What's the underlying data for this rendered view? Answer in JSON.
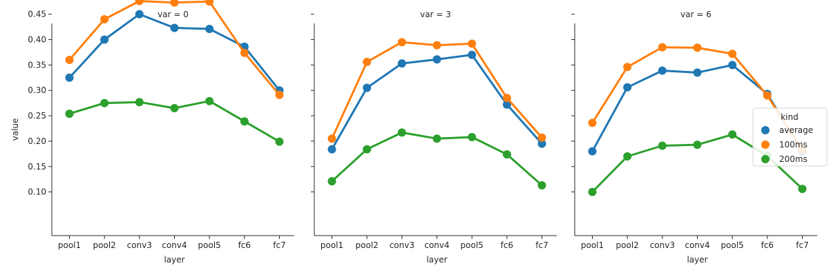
{
  "chart_data": {
    "type": "line",
    "facet_variable": "var",
    "legend": {
      "title": "kind",
      "placement": "right",
      "entries": [
        "average",
        "100ms",
        "200ms"
      ]
    },
    "colors": {
      "average": "#1f77b4",
      "100ms": "#ff7f0e",
      "200ms": "#2ca02c"
    },
    "categories": [
      "pool1",
      "pool2",
      "conv3",
      "conv4",
      "pool5",
      "fc6",
      "fc7"
    ],
    "xlabel": "layer",
    "ylabel": "value",
    "ylim": [
      0.075,
      0.5
    ],
    "yticks": [
      "0.10",
      "0.15",
      "0.20",
      "0.25",
      "0.30",
      "0.35",
      "0.40",
      "0.45"
    ],
    "grid": false,
    "panels": [
      {
        "title": "var = 0",
        "series": [
          {
            "name": "average",
            "values": [
              0.325,
              0.4,
              0.45,
              0.423,
              0.421,
              0.386,
              0.3
            ]
          },
          {
            "name": "100ms",
            "values": [
              0.36,
              0.44,
              0.476,
              0.473,
              0.475,
              0.374,
              0.291
            ]
          },
          {
            "name": "200ms",
            "values": [
              0.254,
              0.275,
              0.277,
              0.265,
              0.279,
              0.239,
              0.199
            ]
          }
        ]
      },
      {
        "title": "var = 3",
        "series": [
          {
            "name": "average",
            "values": [
              0.184,
              0.305,
              0.353,
              0.361,
              0.37,
              0.272,
              0.195
            ]
          },
          {
            "name": "100ms",
            "values": [
              0.205,
              0.356,
              0.395,
              0.389,
              0.392,
              0.285,
              0.207
            ]
          },
          {
            "name": "200ms",
            "values": [
              0.121,
              0.184,
              0.217,
              0.205,
              0.208,
              0.174,
              0.113
            ]
          }
        ]
      },
      {
        "title": "var = 6",
        "series": [
          {
            "name": "average",
            "values": [
              0.18,
              0.306,
              0.339,
              0.335,
              0.35,
              0.293,
              0.18
            ]
          },
          {
            "name": "100ms",
            "values": [
              0.236,
              0.346,
              0.385,
              0.384,
              0.372,
              0.29,
              0.183
            ]
          },
          {
            "name": "200ms",
            "values": [
              0.1,
              0.17,
              0.191,
              0.193,
              0.213,
              0.171,
              0.106
            ]
          }
        ]
      }
    ]
  }
}
